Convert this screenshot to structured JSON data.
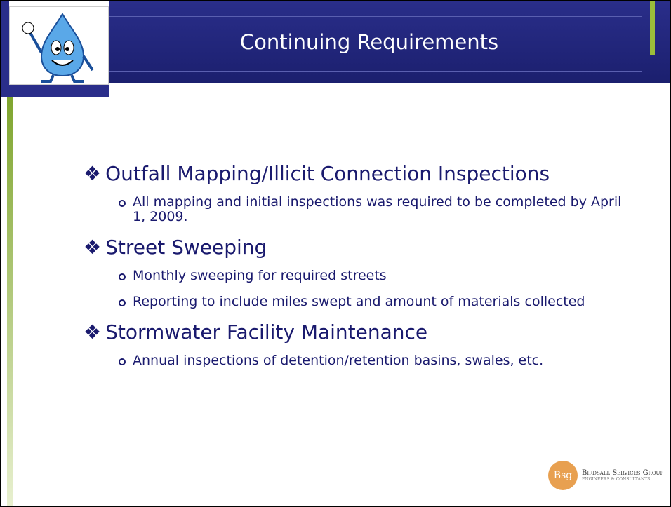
{
  "slide": {
    "title": "Continuing Requirements",
    "sections": [
      {
        "heading": "Outfall Mapping/Illicit Connection Inspections",
        "bullets": [
          "All mapping and initial inspections was required to be completed by April 1, 2009."
        ]
      },
      {
        "heading": "Street Sweeping",
        "bullets": [
          "Monthly sweeping for required streets",
          "Reporting to include miles swept and amount of materials collected"
        ]
      },
      {
        "heading": "Stormwater Facility Maintenance",
        "bullets": [
          "Annual inspections of detention/retention basins, swales, etc."
        ]
      }
    ],
    "logo": {
      "mark": "Bsg",
      "name": "Birdsall Services Group",
      "tagline": "Engineers & Consultants"
    }
  }
}
